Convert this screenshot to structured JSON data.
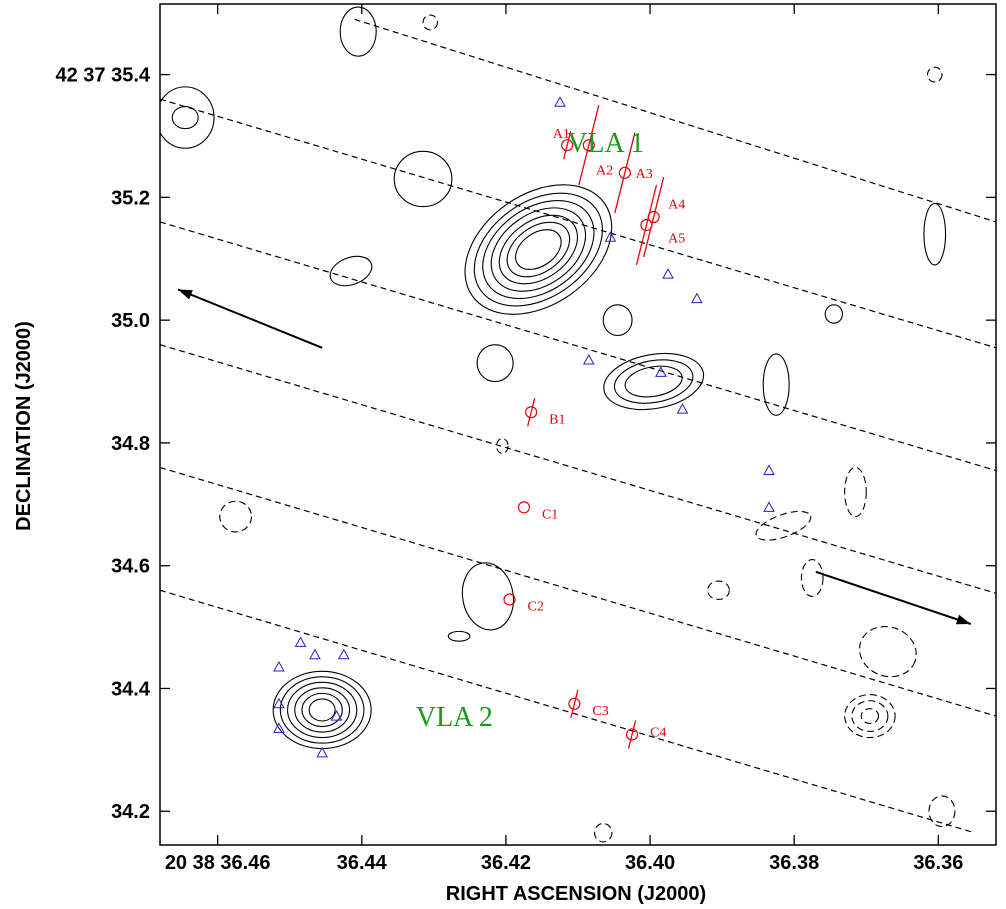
{
  "chart_data": {
    "type": "scatter",
    "title": "",
    "xlabel": "RIGHT ASCENSION (J2000)",
    "ylabel": "DECLINATION (J2000)",
    "x_unit": "seconds of RA (20 38 ...)",
    "y_unit": "arcsec of Dec (42 37 ...)",
    "xlim": [
      36.468,
      36.352
    ],
    "ylim": [
      34.145,
      35.515
    ],
    "x_ticks": [
      {
        "value": 36.46,
        "label": "20 38 36.46"
      },
      {
        "value": 36.44,
        "label": "36.44"
      },
      {
        "value": 36.42,
        "label": "36.42"
      },
      {
        "value": 36.4,
        "label": "36.40"
      },
      {
        "value": 36.38,
        "label": "36.38"
      },
      {
        "value": 36.36,
        "label": "36.36"
      }
    ],
    "y_ticks": [
      {
        "value": 35.4,
        "label": "42 37 35.4"
      },
      {
        "value": 35.2,
        "label": "35.2"
      },
      {
        "value": 35.0,
        "label": "35.0"
      },
      {
        "value": 34.8,
        "label": "34.8"
      },
      {
        "value": 34.6,
        "label": "34.6"
      },
      {
        "value": 34.4,
        "label": "34.4"
      },
      {
        "value": 34.2,
        "label": "34.2"
      }
    ],
    "sources": [
      {
        "name": "VLA 1",
        "ra": 36.415,
        "dec": 35.115,
        "label_ra": 36.4115,
        "label_dec": 35.29
      },
      {
        "name": "VLA 2",
        "ra": 36.4455,
        "dec": 34.365,
        "label_ra": 36.4325,
        "label_dec": 34.355
      }
    ],
    "masers": [
      {
        "label": "A1",
        "ra": 36.4115,
        "dec": 35.285,
        "tick": true,
        "label_ra": 36.4135,
        "label_dec": 35.305
      },
      {
        "label": "A2",
        "ra": 36.4085,
        "dec": 35.285,
        "tick": true,
        "label_ra": 36.4075,
        "label_dec": 35.245
      },
      {
        "label": "A3",
        "ra": 36.4035,
        "dec": 35.24,
        "tick": true,
        "label_ra": 36.402,
        "label_dec": 35.24
      },
      {
        "label": "A4",
        "ra": 36.3995,
        "dec": 35.168,
        "tick": true,
        "label_ra": 36.3975,
        "label_dec": 35.19
      },
      {
        "label": "A5",
        "ra": 36.4005,
        "dec": 35.155,
        "tick": true,
        "label_ra": 36.3975,
        "label_dec": 35.135
      },
      {
        "label": "B1",
        "ra": 36.4165,
        "dec": 34.85,
        "tick": true,
        "label_ra": 36.414,
        "label_dec": 34.84
      },
      {
        "label": "C1",
        "ra": 36.4175,
        "dec": 34.695,
        "tick": false,
        "label_ra": 36.415,
        "label_dec": 34.685
      },
      {
        "label": "C2",
        "ra": 36.4195,
        "dec": 34.545,
        "tick": false,
        "label_ra": 36.417,
        "label_dec": 34.535
      },
      {
        "label": "C3",
        "ra": 36.4105,
        "dec": 34.375,
        "tick": true,
        "label_ra": 36.408,
        "label_dec": 34.365
      },
      {
        "label": "C4",
        "ra": 36.4025,
        "dec": 34.325,
        "tick": true,
        "label_ra": 36.4,
        "label_dec": 34.33
      }
    ],
    "triangles": [
      {
        "ra": 36.4125,
        "dec": 35.355
      },
      {
        "ra": 36.4055,
        "dec": 35.135
      },
      {
        "ra": 36.3975,
        "dec": 35.075
      },
      {
        "ra": 36.3935,
        "dec": 35.035
      },
      {
        "ra": 36.4085,
        "dec": 34.935
      },
      {
        "ra": 36.3985,
        "dec": 34.915
      },
      {
        "ra": 36.3955,
        "dec": 34.855
      },
      {
        "ra": 36.3835,
        "dec": 34.755
      },
      {
        "ra": 36.3835,
        "dec": 34.695
      },
      {
        "ra": 36.4485,
        "dec": 34.475
      },
      {
        "ra": 36.4465,
        "dec": 34.455
      },
      {
        "ra": 36.4425,
        "dec": 34.455
      },
      {
        "ra": 36.4515,
        "dec": 34.435
      },
      {
        "ra": 36.4515,
        "dec": 34.375
      },
      {
        "ra": 36.4435,
        "dec": 34.355
      },
      {
        "ra": 36.4515,
        "dec": 34.335
      },
      {
        "ra": 36.4455,
        "dec": 34.295
      }
    ],
    "dashed_lines": [
      {
        "from": [
          36.441,
          35.49
        ],
        "to": [
          36.352,
          35.16
        ]
      },
      {
        "from": [
          36.468,
          35.36
        ],
        "to": [
          36.352,
          34.955
        ]
      },
      {
        "from": [
          36.468,
          35.16
        ],
        "to": [
          36.352,
          34.755
        ]
      },
      {
        "from": [
          36.468,
          34.96
        ],
        "to": [
          36.352,
          34.555
        ]
      },
      {
        "from": [
          36.468,
          34.76
        ],
        "to": [
          36.352,
          34.355
        ]
      },
      {
        "from": [
          36.468,
          34.56
        ],
        "to": [
          36.355,
          34.165
        ]
      }
    ],
    "arrows": [
      {
        "from": [
          36.4455,
          34.955
        ],
        "to": [
          36.4655,
          35.05
        ]
      },
      {
        "from": [
          36.377,
          34.59
        ],
        "to": [
          36.3555,
          34.505
        ]
      }
    ],
    "contours": [
      {
        "center": [
          36.4155,
          35.115
        ],
        "radii_ra": [
          0.0035,
          0.0048,
          0.006,
          0.0072,
          0.0085,
          0.0098,
          0.0112
        ],
        "radii_dec": [
          0.027,
          0.037,
          0.047,
          0.058,
          0.068,
          0.078,
          0.09
        ],
        "angle_deg": -35
      },
      {
        "center": [
          36.4455,
          34.365
        ],
        "radii_ra": [
          0.0018,
          0.0028,
          0.0038,
          0.0048,
          0.0058,
          0.0068
        ],
        "radii_dec": [
          0.018,
          0.027,
          0.036,
          0.045,
          0.054,
          0.063
        ],
        "angle_deg": 0
      },
      {
        "center": [
          36.3995,
          34.9
        ],
        "radii_ra": [
          0.004,
          0.0055,
          0.007
        ],
        "radii_dec": [
          0.024,
          0.034,
          0.044
        ],
        "angle_deg": -10
      },
      {
        "center": [
          36.4315,
          35.23
        ],
        "radii_ra": [
          0.004
        ],
        "radii_dec": [
          0.045
        ],
        "angle_deg": 0
      },
      {
        "center": [
          36.4645,
          35.33
        ],
        "radii_ra": [
          0.0018,
          0.004
        ],
        "radii_dec": [
          0.018,
          0.05
        ],
        "angle_deg": 0
      },
      {
        "center": [
          36.4215,
          34.93
        ],
        "radii_ra": [
          0.0025
        ],
        "radii_dec": [
          0.03
        ],
        "angle_deg": 0
      },
      {
        "center": [
          36.4225,
          34.55
        ],
        "radii_ra": [
          0.0035
        ],
        "radii_dec": [
          0.055
        ],
        "angle_deg": -10
      },
      {
        "center": [
          36.4045,
          35.0
        ],
        "radii_ra": [
          0.002
        ],
        "radii_dec": [
          0.025
        ],
        "angle_deg": 0
      },
      {
        "center": [
          36.3825,
          34.895
        ],
        "radii_ra": [
          0.0018
        ],
        "radii_dec": [
          0.05
        ],
        "angle_deg": 0
      },
      {
        "center": [
          36.3605,
          35.14
        ],
        "radii_ra": [
          0.0015
        ],
        "radii_dec": [
          0.05
        ],
        "angle_deg": 0
      },
      {
        "center": [
          36.4415,
          35.08
        ],
        "radii_ra": [
          0.003
        ],
        "radii_dec": [
          0.022
        ],
        "angle_deg": -20
      },
      {
        "center": [
          36.4405,
          35.47
        ],
        "radii_ra": [
          0.0025
        ],
        "radii_dec": [
          0.04
        ],
        "angle_deg": 0
      },
      {
        "center": [
          36.3745,
          35.01
        ],
        "radii_ra": [
          0.0012
        ],
        "radii_dec": [
          0.015
        ],
        "angle_deg": 0
      },
      {
        "center": [
          36.4265,
          34.485
        ],
        "radii_ra": [
          0.0015
        ],
        "radii_dec": [
          0.008
        ],
        "angle_deg": 0
      }
    ],
    "negative_contours": [
      {
        "center": [
          36.3695,
          34.355
        ],
        "radii_ra": [
          0.0012,
          0.0025,
          0.0035
        ],
        "radii_dec": [
          0.012,
          0.025,
          0.035
        ],
        "angle_deg": 0
      },
      {
        "center": [
          36.367,
          34.46
        ],
        "radii_ra": [
          0.004
        ],
        "radii_dec": [
          0.04
        ],
        "angle_deg": 20
      },
      {
        "center": [
          36.3815,
          34.665
        ],
        "radii_ra": [
          0.004
        ],
        "radii_dec": [
          0.018
        ],
        "angle_deg": -20
      },
      {
        "center": [
          36.3715,
          34.72
        ],
        "radii_ra": [
          0.0015
        ],
        "radii_dec": [
          0.04
        ],
        "angle_deg": 0
      },
      {
        "center": [
          36.4575,
          34.68
        ],
        "radii_ra": [
          0.0022
        ],
        "radii_dec": [
          0.025
        ],
        "angle_deg": 0
      },
      {
        "center": [
          36.3775,
          34.58
        ],
        "radii_ra": [
          0.0015
        ],
        "radii_dec": [
          0.03
        ],
        "angle_deg": 0
      },
      {
        "center": [
          36.3905,
          34.56
        ],
        "radii_ra": [
          0.0015
        ],
        "radii_dec": [
          0.015
        ],
        "angle_deg": 0
      },
      {
        "center": [
          36.3595,
          34.2
        ],
        "radii_ra": [
          0.0018
        ],
        "radii_dec": [
          0.025
        ],
        "angle_deg": 0
      },
      {
        "center": [
          36.4065,
          34.165
        ],
        "radii_ra": [
          0.0012
        ],
        "radii_dec": [
          0.015
        ],
        "angle_deg": 0
      },
      {
        "center": [
          36.4205,
          34.795
        ],
        "radii_ra": [
          0.0008
        ],
        "radii_dec": [
          0.012
        ],
        "angle_deg": 0
      },
      {
        "center": [
          36.3605,
          35.4
        ],
        "radii_ra": [
          0.001
        ],
        "radii_dec": [
          0.012
        ],
        "angle_deg": 0
      },
      {
        "center": [
          36.4305,
          35.485
        ],
        "radii_ra": [
          0.001
        ],
        "radii_dec": [
          0.012
        ],
        "angle_deg": 0
      }
    ],
    "colors": {
      "maser": "#e8000b",
      "triangle": "#2222cc",
      "source_label": "#1a9a1a",
      "contour": "#000000"
    }
  }
}
